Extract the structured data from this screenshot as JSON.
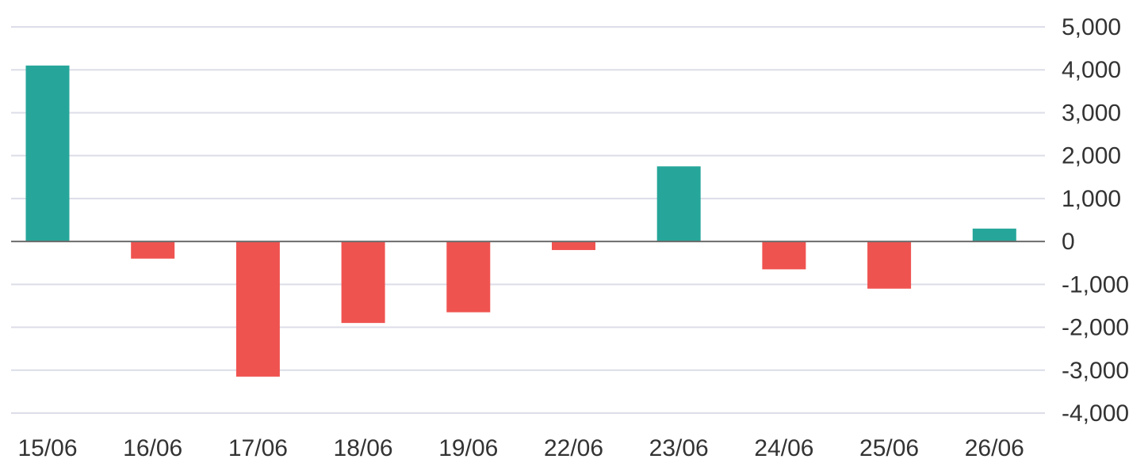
{
  "chart_data": {
    "type": "bar",
    "title": "",
    "xlabel": "",
    "ylabel": "",
    "categories": [
      "15/06",
      "16/06",
      "17/06",
      "18/06",
      "19/06",
      "22/06",
      "23/06",
      "24/06",
      "25/06",
      "26/06"
    ],
    "values": [
      4100,
      -400,
      -3150,
      -1900,
      -1650,
      -200,
      1750,
      -650,
      -1100,
      300
    ],
    "ylim": [
      -4000,
      5000
    ],
    "yticks": [
      5000,
      4000,
      3000,
      2000,
      1000,
      0,
      -1000,
      -2000,
      -3000,
      -4000
    ],
    "ytick_labels": [
      "5,000",
      "4,000",
      "3,000",
      "2,000",
      "1,000",
      "0",
      "-1,000",
      "-2,000",
      "-3,000",
      "-4,000"
    ],
    "y_axis_position": "right",
    "grid": true,
    "legend": false,
    "colors": {
      "positive": "#26a69a",
      "negative": "#ef5350"
    }
  }
}
